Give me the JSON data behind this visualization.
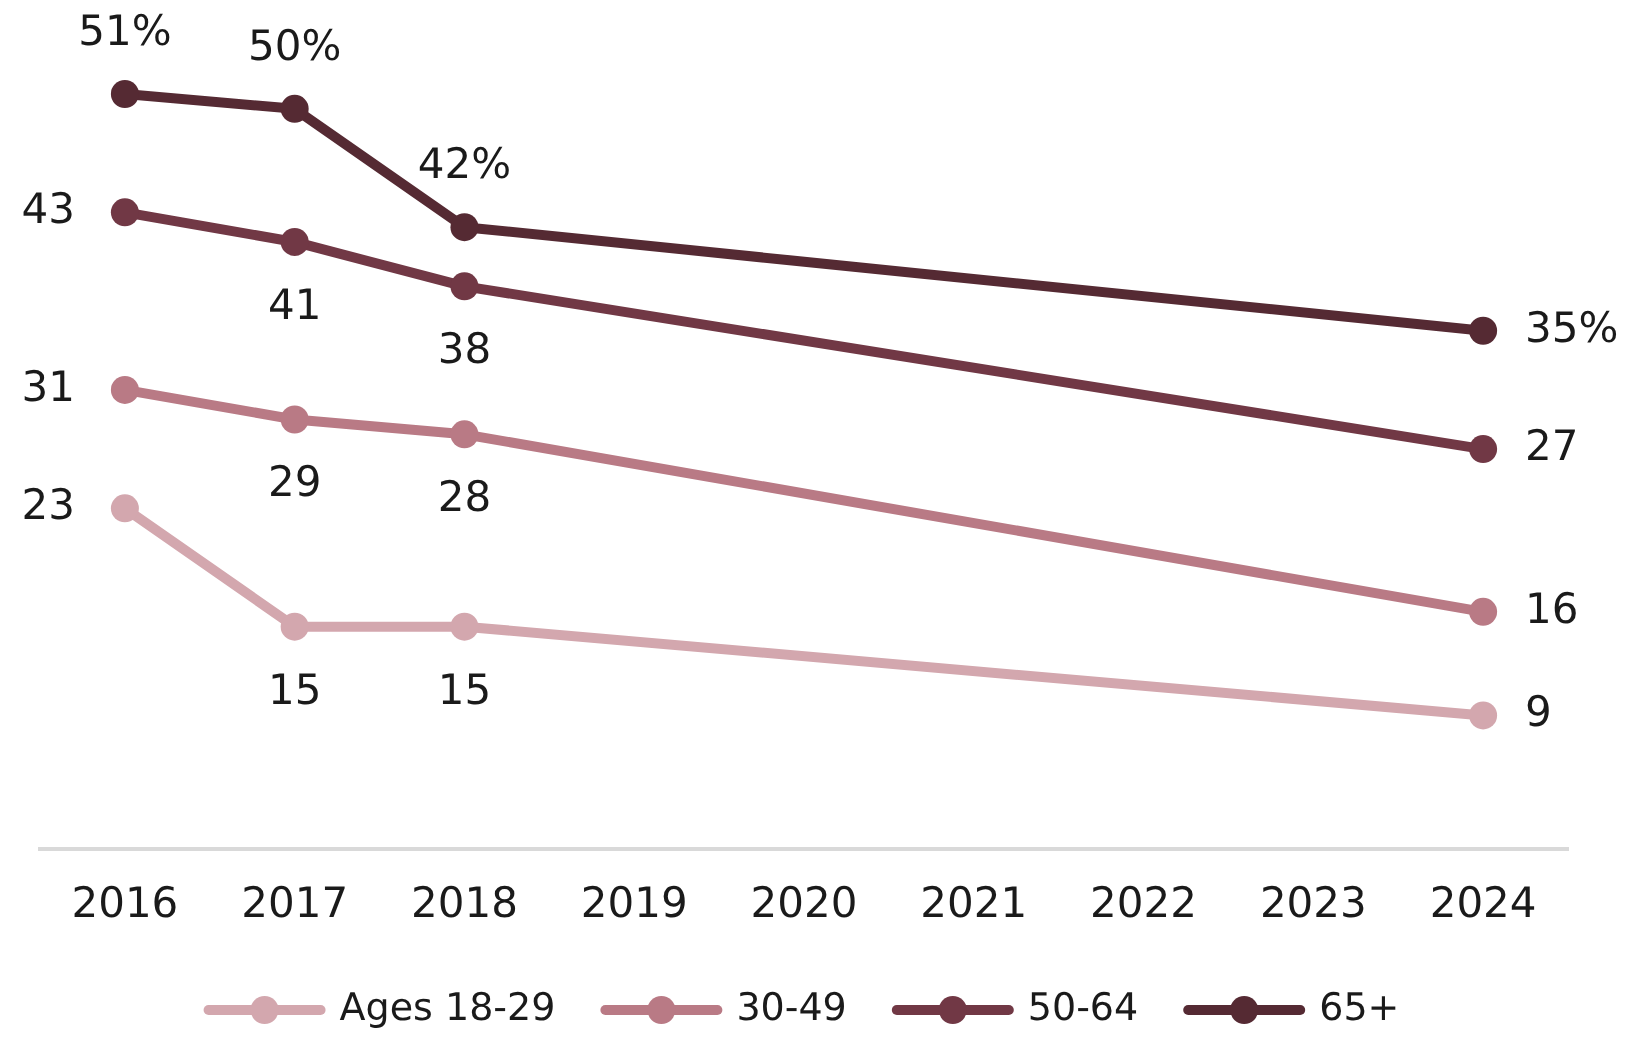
{
  "chart_data": {
    "type": "line",
    "x": [
      2016,
      2017,
      2018,
      2024
    ],
    "xlim": [
      2015.5,
      2024.5
    ],
    "xticks": [
      2016,
      2017,
      2018,
      2019,
      2020,
      2021,
      2022,
      2023,
      2024
    ],
    "tick_labels": "x",
    "legend": "bottom",
    "marker": "circle",
    "line_style": "solid",
    "series": [
      {
        "name": "Ages 18-29",
        "color": "#d3a7ae",
        "values": [
          23,
          15,
          15,
          9
        ],
        "value_labels": [
          "23",
          "15",
          "15",
          "9"
        ]
      },
      {
        "name": "30-49",
        "color": "#b97a85",
        "values": [
          31,
          29,
          28,
          16
        ],
        "value_labels": [
          "31",
          "29",
          "28",
          "16"
        ]
      },
      {
        "name": "50-64",
        "color": "#713845",
        "values": [
          43,
          41,
          38,
          27
        ],
        "value_labels": [
          "43",
          "41",
          "38",
          "27"
        ]
      },
      {
        "name": "65+",
        "color": "#552a33",
        "values": [
          51,
          50,
          42,
          35
        ],
        "value_labels": [
          "51%",
          "50%",
          "42%",
          "35%"
        ]
      }
    ]
  }
}
